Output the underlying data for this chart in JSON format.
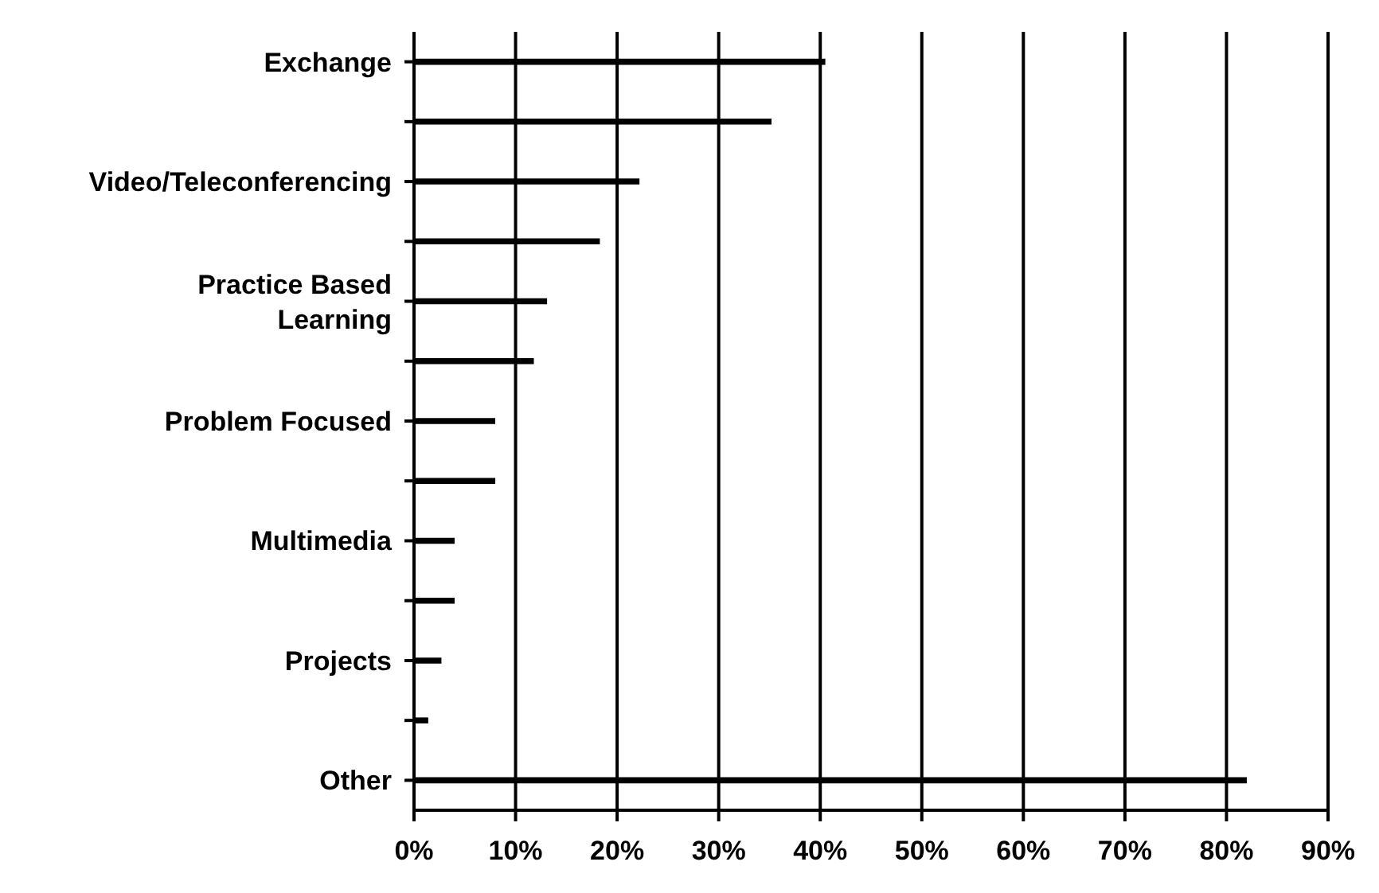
{
  "chart_data": {
    "type": "bar",
    "orientation": "horizontal",
    "categories": [
      "Exchange",
      null,
      "Video/Teleconferencing",
      null,
      "Practice Based Learning",
      null,
      "Problem Focused",
      null,
      "Multimedia",
      null,
      "Projects",
      null,
      "Other"
    ],
    "values": [
      40.5,
      35.2,
      22.2,
      18.3,
      13.1,
      11.8,
      8.0,
      8.0,
      4.0,
      4.0,
      2.7,
      1.4,
      82
    ],
    "color": "#000000",
    "xlim": [
      0,
      90
    ],
    "xticks": [
      {
        "value": 0,
        "label": "0%"
      },
      {
        "value": 10,
        "label": "10%"
      },
      {
        "value": 20,
        "label": "20%"
      },
      {
        "value": 30,
        "label": "30%"
      },
      {
        "value": 40,
        "label": "40%"
      },
      {
        "value": 50,
        "label": "50%"
      },
      {
        "value": 60,
        "label": "60%"
      },
      {
        "value": 70,
        "label": "70%"
      },
      {
        "value": 80,
        "label": "80%"
      },
      {
        "value": 90,
        "label": "90%"
      }
    ],
    "grid": "x"
  }
}
